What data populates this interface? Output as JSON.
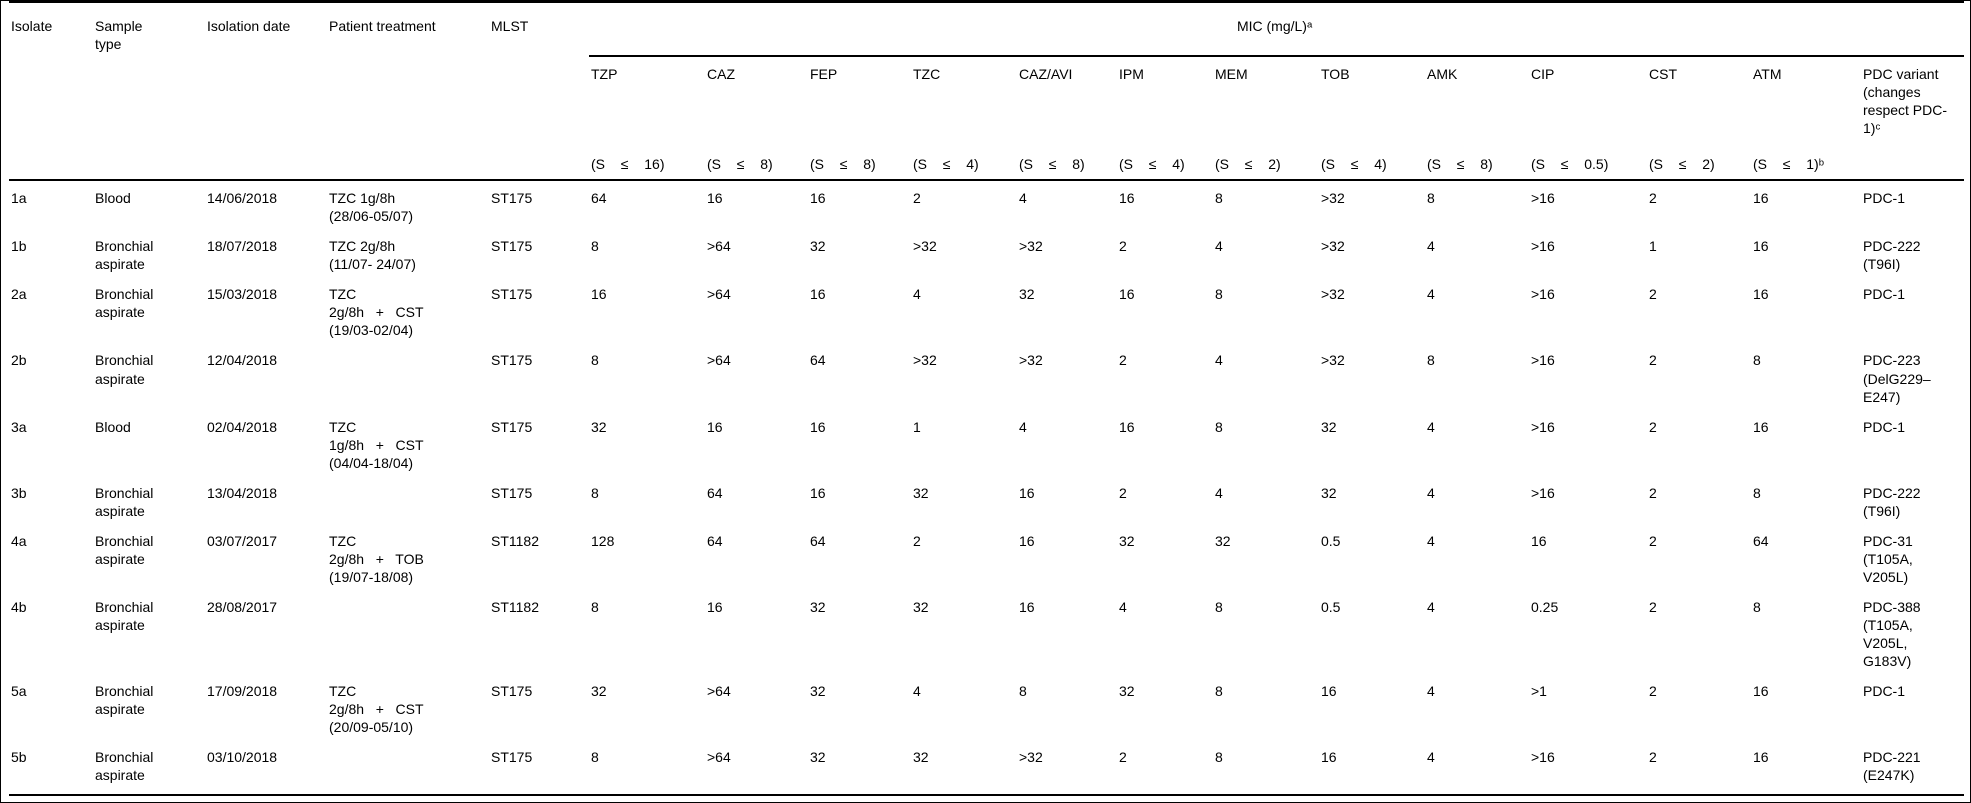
{
  "header": {
    "left_columns": [
      "Isolate",
      "Sample\ntype",
      "Isolation date",
      "Patient treatment",
      "MLST"
    ],
    "mic_group": "MIC (mg/L)ᵃ",
    "mic_columns": [
      {
        "abbr": "TZP",
        "breakpoint": "(S  ≤  16)"
      },
      {
        "abbr": "CAZ",
        "breakpoint": "(S  ≤  8)"
      },
      {
        "abbr": "FEP",
        "breakpoint": "(S  ≤  8)"
      },
      {
        "abbr": "TZC",
        "breakpoint": "(S  ≤  4)"
      },
      {
        "abbr": "CAZ/AVI",
        "breakpoint": "(S  ≤  8)"
      },
      {
        "abbr": "IPM",
        "breakpoint": "(S  ≤  4)"
      },
      {
        "abbr": "MEM",
        "breakpoint": "(S  ≤  2)"
      },
      {
        "abbr": "TOB",
        "breakpoint": "(S  ≤  4)"
      },
      {
        "abbr": "AMK",
        "breakpoint": "(S  ≤  8)"
      },
      {
        "abbr": "CIP",
        "breakpoint": "(S  ≤  0.5)"
      },
      {
        "abbr": "CST",
        "breakpoint": "(S  ≤  2)"
      },
      {
        "abbr": "ATM",
        "breakpoint": "(S  ≤  1)ᵇ"
      }
    ],
    "pdc_column": "PDC variant\n(changes\nrespect PDC-\n1)ᶜ"
  },
  "rows": [
    {
      "isolate": "1a",
      "sample_type": "Blood",
      "isolation_date": "14/06/2018",
      "treatment": "TZC 1g/8h\n(28/06-05/07)",
      "mlst": "ST175",
      "mic": [
        "64",
        "16",
        "16",
        "2",
        "4",
        "16",
        "8",
        ">32",
        "8",
        ">16",
        "2",
        "16"
      ],
      "pdc": "PDC-1"
    },
    {
      "isolate": "1b",
      "sample_type": "Bronchial\naspirate",
      "isolation_date": "18/07/2018",
      "treatment": "TZC 2g/8h\n(11/07- 24/07)",
      "mlst": "ST175",
      "mic": [
        "8",
        ">64",
        "32",
        ">32",
        ">32",
        "2",
        "4",
        ">32",
        "4",
        ">16",
        "1",
        "16"
      ],
      "pdc": "PDC-222\n(T96I)"
    },
    {
      "isolate": "2a",
      "sample_type": "Bronchial\naspirate",
      "isolation_date": "15/03/2018",
      "treatment": "TZC\n2g/8h   +   CST\n(19/03-02/04)",
      "mlst": "ST175",
      "mic": [
        "16",
        ">64",
        "16",
        "4",
        "32",
        "16",
        "8",
        ">32",
        "4",
        ">16",
        "2",
        "16"
      ],
      "pdc": "PDC-1"
    },
    {
      "isolate": "2b",
      "sample_type": "Bronchial\naspirate",
      "isolation_date": "12/04/2018",
      "treatment": "",
      "mlst": "ST175",
      "mic": [
        "8",
        ">64",
        "64",
        ">32",
        ">32",
        "2",
        "4",
        ">32",
        "8",
        ">16",
        "2",
        "8"
      ],
      "pdc": "PDC-223\n(DelG229–\nE247)"
    },
    {
      "isolate": "3a",
      "sample_type": "Blood",
      "isolation_date": "02/04/2018",
      "treatment": "TZC\n1g/8h   +   CST\n(04/04-18/04)",
      "mlst": "ST175",
      "mic": [
        "32",
        "16",
        "16",
        "1",
        "4",
        "16",
        "8",
        "32",
        "4",
        ">16",
        "2",
        "16"
      ],
      "pdc": "PDC-1"
    },
    {
      "isolate": "3b",
      "sample_type": "Bronchial\naspirate",
      "isolation_date": "13/04/2018",
      "treatment": "",
      "mlst": "ST175",
      "mic": [
        "8",
        "64",
        "16",
        "32",
        "16",
        "2",
        "4",
        "32",
        "4",
        ">16",
        "2",
        "8"
      ],
      "pdc": "PDC-222\n(T96I)"
    },
    {
      "isolate": "4a",
      "sample_type": "Bronchial\naspirate",
      "isolation_date": "03/07/2017",
      "treatment": "TZC\n2g/8h   +   TOB\n(19/07-18/08)",
      "mlst": "ST1182",
      "mic": [
        "128",
        "64",
        "64",
        "2",
        "16",
        "32",
        "32",
        "0.5",
        "4",
        "16",
        "2",
        "64"
      ],
      "pdc": "PDC-31\n(T105A,\nV205L)"
    },
    {
      "isolate": "4b",
      "sample_type": "Bronchial\naspirate",
      "isolation_date": "28/08/2017",
      "treatment": "",
      "mlst": "ST1182",
      "mic": [
        "8",
        "16",
        "32",
        "32",
        "16",
        "4",
        "8",
        "0.5",
        "4",
        "0.25",
        "2",
        "8"
      ],
      "pdc": "PDC-388\n(T105A,\nV205L,\nG183V)"
    },
    {
      "isolate": "5a",
      "sample_type": "Bronchial\naspirate",
      "isolation_date": "17/09/2018",
      "treatment": "TZC\n2g/8h   +   CST\n(20/09-05/10)",
      "mlst": "ST175",
      "mic": [
        "32",
        ">64",
        "32",
        "4",
        "8",
        "32",
        "8",
        "16",
        "4",
        ">1",
        "2",
        "16"
      ],
      "pdc": "PDC-1"
    },
    {
      "isolate": "5b",
      "sample_type": "Bronchial\naspirate",
      "isolation_date": "03/10/2018",
      "treatment": "",
      "mlst": "ST175",
      "mic": [
        "8",
        ">64",
        "32",
        "32",
        ">32",
        "2",
        "8",
        "16",
        "4",
        ">16",
        "2",
        "16"
      ],
      "pdc": "PDC-221\n(E247K)"
    }
  ]
}
